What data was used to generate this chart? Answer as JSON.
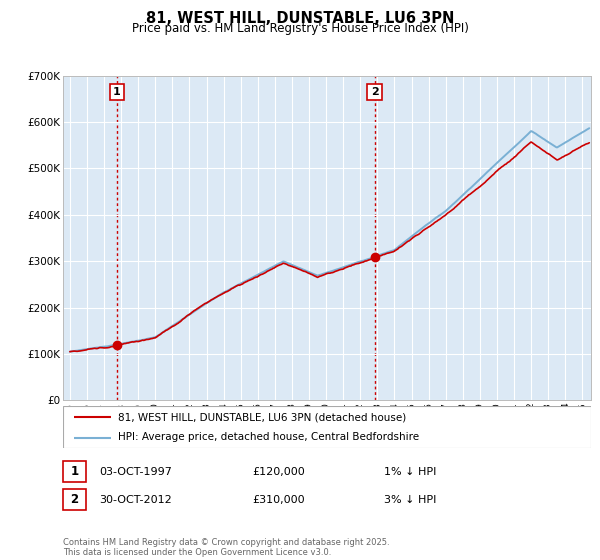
{
  "title_line1": "81, WEST HILL, DUNSTABLE, LU6 3PN",
  "title_line2": "Price paid vs. HM Land Registry's House Price Index (HPI)",
  "background_color": "#ffffff",
  "plot_bg_color": "#dce9f5",
  "grid_color": "#ffffff",
  "hpi_line_color": "#7ab0d4",
  "price_line_color": "#cc0000",
  "marker_color": "#cc0000",
  "vline_color": "#cc0000",
  "sale1_x": 1997.75,
  "sale1_y": 120000,
  "sale2_x": 2012.83,
  "sale2_y": 310000,
  "legend_line1": "81, WEST HILL, DUNSTABLE, LU6 3PN (detached house)",
  "legend_line2": "HPI: Average price, detached house, Central Bedfordshire",
  "table_row1": [
    "1",
    "03-OCT-1997",
    "£120,000",
    "1% ↓ HPI"
  ],
  "table_row2": [
    "2",
    "30-OCT-2012",
    "£310,000",
    "3% ↓ HPI"
  ],
  "footer": "Contains HM Land Registry data © Crown copyright and database right 2025.\nThis data is licensed under the Open Government Licence v3.0.",
  "ylim": [
    0,
    700000
  ],
  "xlim_start": 1994.6,
  "xlim_end": 2025.5
}
